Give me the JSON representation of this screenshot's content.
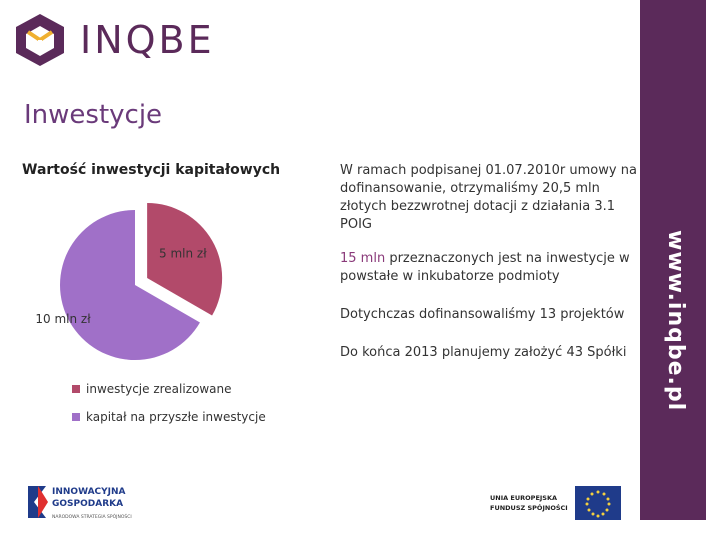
{
  "header": {
    "logo_text": "INQBE"
  },
  "page": {
    "title": "Inwestycje"
  },
  "sidebar": {
    "url": "www.inqbe.pl"
  },
  "chart_data": {
    "type": "pie",
    "title": "Wartość inwestycji kapitałowych",
    "slices": [
      {
        "name": "inwestycje zrealizowane",
        "value": 5,
        "label": "5 mln zł",
        "color": "#b24a6a"
      },
      {
        "name": "kapitał na przyszłe inwestycje",
        "value": 10,
        "label": "10 mln zł",
        "color": "#a070c8"
      }
    ],
    "legend_position": "bottom-left"
  },
  "paragraphs": [
    {
      "highlight": "",
      "text": "W ramach podpisanej 01.07.2010r umowy na dofinansowanie, otrzymaliśmy 20,5 mln złotych bezzwrotnej dotacji z działania 3.1 POIG"
    },
    {
      "highlight": "15 mln",
      "text": " przeznaczonych jest na inwestycje w powstałe w inkubatorze podmioty"
    },
    {
      "highlight": "",
      "text": "Dotychczas dofinansowaliśmy 13 projektów"
    },
    {
      "highlight": "",
      "text": "Do końca 2013 planujemy założyć 43 Spółki"
    }
  ],
  "footer": {
    "left_lines": [
      "INNOWACYJNA",
      "GOSPODARKA",
      "NARODOWA STRATEGIA SPÓJNOŚCI"
    ],
    "right_lines": [
      "UNIA EUROPEJSKA",
      "FUNDUSZ SPÓJNOŚCI"
    ]
  }
}
